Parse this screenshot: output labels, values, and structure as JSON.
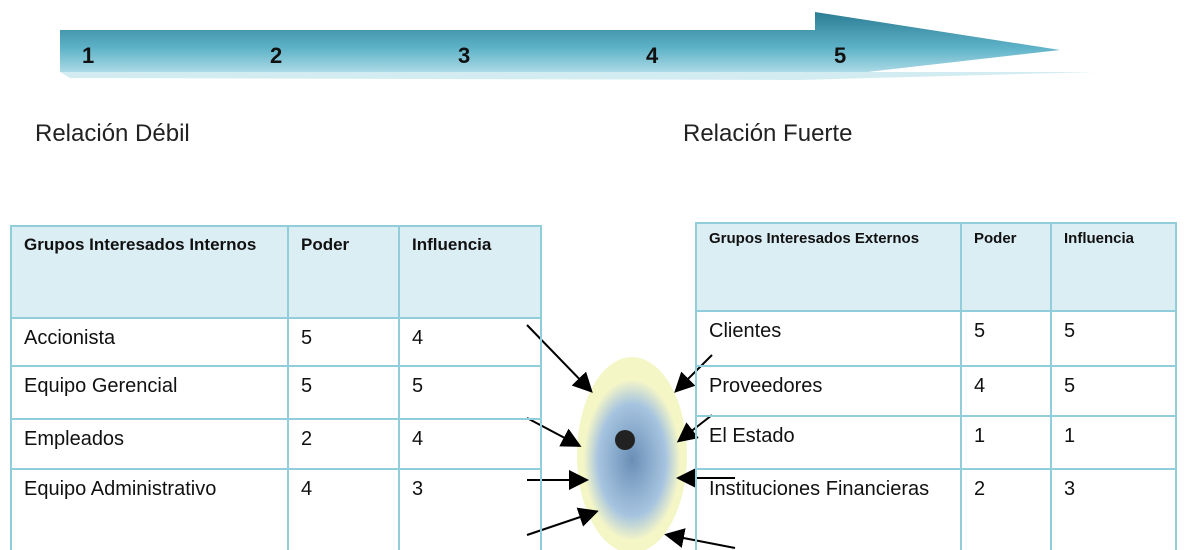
{
  "scale": {
    "labels": [
      1,
      2,
      3,
      4,
      5
    ],
    "weak": "Relación Débil",
    "strong": "Relación Fuerte"
  },
  "internal_table": {
    "header": [
      "Grupos Interesados Internos",
      "Poder",
      "Influencia"
    ],
    "rows": [
      [
        "Accionista",
        5,
        4
      ],
      [
        "Equipo Gerencial",
        5,
        5
      ],
      [
        "Empleados",
        2,
        4
      ],
      [
        "Equipo Administrativo",
        4,
        3
      ]
    ]
  },
  "external_table": {
    "header": [
      "Grupos Interesados Externos",
      "Poder",
      "Influencia"
    ],
    "rows": [
      [
        "Clientes",
        5,
        5
      ],
      [
        "Proveedores",
        4,
        5
      ],
      [
        "El Estado",
        1,
        1
      ],
      [
        "Instituciones Financieras",
        2,
        3
      ]
    ]
  }
}
